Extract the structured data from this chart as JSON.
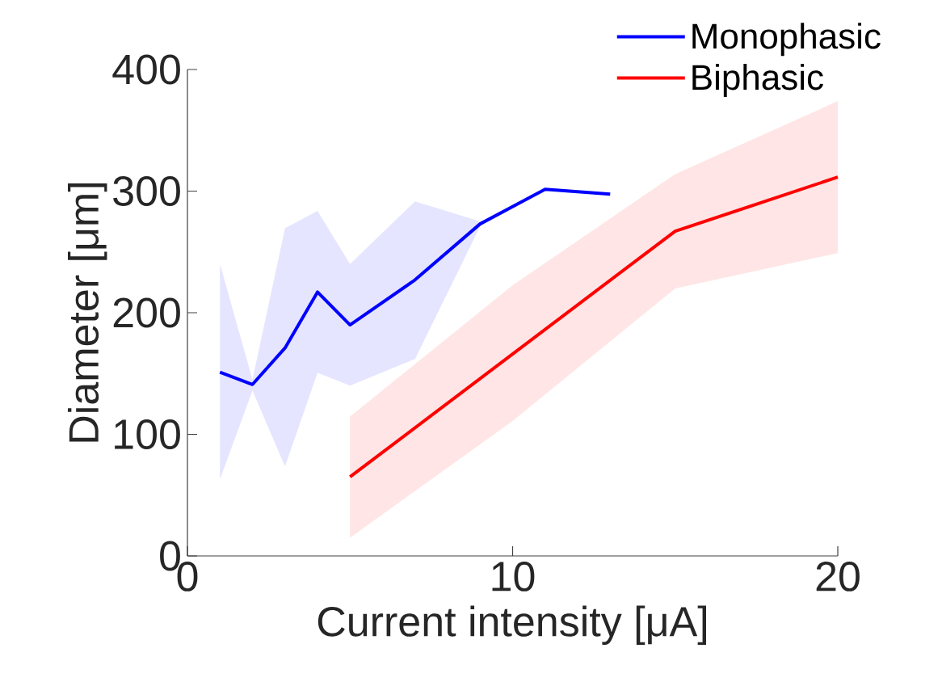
{
  "chart_data": {
    "type": "line",
    "xlabel": "Current intensity [μA]",
    "ylabel": "Diameter [μm]",
    "xlim": [
      0,
      20
    ],
    "ylim": [
      0,
      400
    ],
    "xticks": [
      0,
      10,
      20
    ],
    "yticks": [
      0,
      100,
      200,
      300,
      400
    ],
    "grid": false,
    "legend": "top right",
    "series": [
      {
        "name": "Monophasic",
        "color": "#0000ff",
        "x": [
          1,
          2,
          3,
          4,
          5,
          7,
          9,
          11,
          13
        ],
        "values": [
          151,
          141,
          171,
          217,
          190,
          227,
          273,
          301.5,
          297.5
        ],
        "lower": [
          63,
          136,
          73.5,
          150.6,
          140,
          162,
          271,
          null,
          null
        ],
        "upper": [
          240,
          145,
          269.5,
          283.7,
          240,
          291.6,
          275,
          null,
          null
        ]
      },
      {
        "name": "Biphasic",
        "color": "#ff0000",
        "x": [
          5,
          10,
          15,
          20
        ],
        "values": [
          65,
          166,
          267,
          311.5
        ],
        "lower": [
          15,
          111,
          220,
          249
        ],
        "upper": [
          114.6,
          222.6,
          314,
          374
        ]
      }
    ]
  }
}
